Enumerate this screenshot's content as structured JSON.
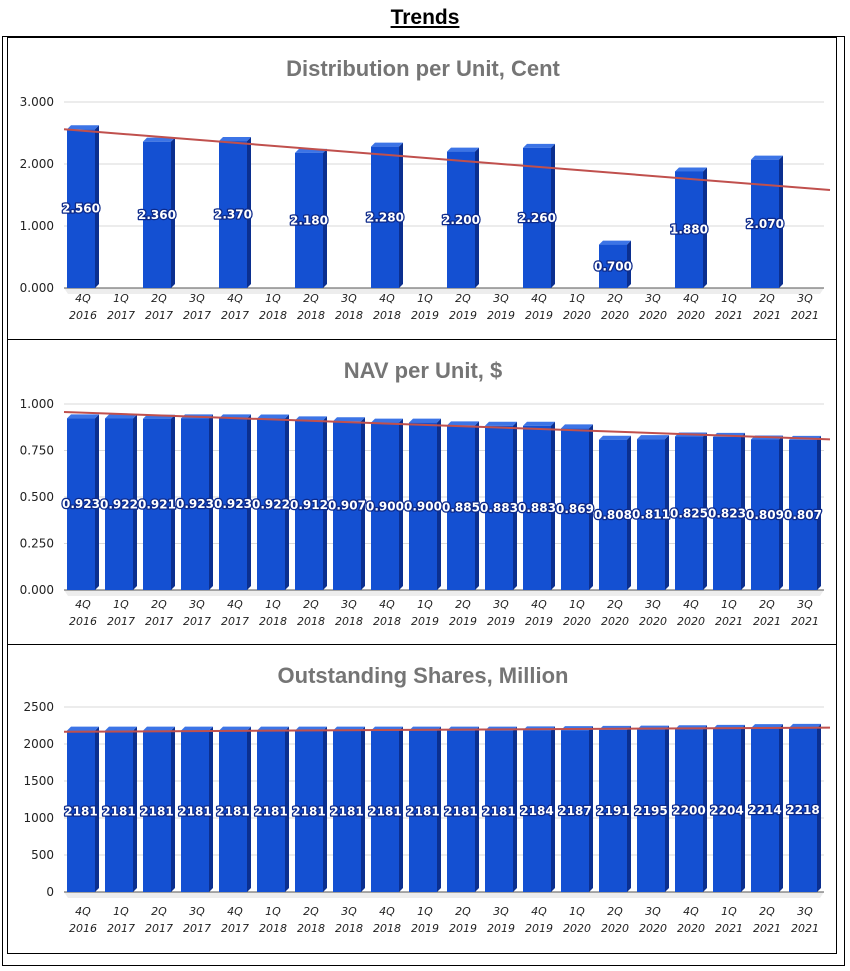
{
  "page": {
    "title": "Trends"
  },
  "colors": {
    "bar_front": "#1450D2",
    "bar_side": "#0B2F8F",
    "bar_top": "#3C74E6",
    "trend": "#C0504D",
    "grid": "#D9D9D9",
    "title": "#757575"
  },
  "charts": [
    {
      "id": "distribution",
      "title": "Distribution per Unit, Cent",
      "type": "bar",
      "ylim": [
        0,
        3
      ],
      "yticks": [
        "0.000",
        "1.000",
        "2.000",
        "3.000"
      ],
      "ytick_values": [
        0,
        1,
        2,
        3
      ],
      "categories": [
        [
          "4Q",
          "2016"
        ],
        [
          "1Q",
          "2017"
        ],
        [
          "2Q",
          "2017"
        ],
        [
          "3Q",
          "2017"
        ],
        [
          "4Q",
          "2017"
        ],
        [
          "1Q",
          "2018"
        ],
        [
          "2Q",
          "2018"
        ],
        [
          "3Q",
          "2018"
        ],
        [
          "4Q",
          "2018"
        ],
        [
          "1Q",
          "2019"
        ],
        [
          "2Q",
          "2019"
        ],
        [
          "3Q",
          "2019"
        ],
        [
          "4Q",
          "2019"
        ],
        [
          "1Q",
          "2020"
        ],
        [
          "2Q",
          "2020"
        ],
        [
          "3Q",
          "2020"
        ],
        [
          "4Q",
          "2020"
        ],
        [
          "1Q",
          "2021"
        ],
        [
          "2Q",
          "2021"
        ],
        [
          "3Q",
          "2021"
        ]
      ],
      "bar_categories": [
        0,
        2,
        4,
        6,
        8,
        10,
        12,
        14,
        16,
        18
      ],
      "values": [
        2.56,
        2.36,
        2.37,
        2.18,
        2.28,
        2.2,
        2.26,
        0.7,
        1.88,
        2.07
      ],
      "labels": [
        "2.560",
        "2.360",
        "2.370",
        "2.180",
        "2.280",
        "2.200",
        "2.260",
        "0.700",
        "1.880",
        "2.070"
      ],
      "trendline": [
        2.56,
        1.58
      ]
    },
    {
      "id": "nav",
      "title": "NAV per Unit, $",
      "type": "bar",
      "ylim": [
        0,
        1
      ],
      "yticks": [
        "0.000",
        "0.250",
        "0.500",
        "0.750",
        "1.000"
      ],
      "ytick_values": [
        0,
        0.25,
        0.5,
        0.75,
        1
      ],
      "categories": [
        [
          "4Q",
          "2016"
        ],
        [
          "1Q",
          "2017"
        ],
        [
          "2Q",
          "2017"
        ],
        [
          "3Q",
          "2017"
        ],
        [
          "4Q",
          "2017"
        ],
        [
          "1Q",
          "2018"
        ],
        [
          "2Q",
          "2018"
        ],
        [
          "3Q",
          "2018"
        ],
        [
          "4Q",
          "2018"
        ],
        [
          "1Q",
          "2019"
        ],
        [
          "2Q",
          "2019"
        ],
        [
          "3Q",
          "2019"
        ],
        [
          "4Q",
          "2019"
        ],
        [
          "1Q",
          "2020"
        ],
        [
          "2Q",
          "2020"
        ],
        [
          "3Q",
          "2020"
        ],
        [
          "4Q",
          "2020"
        ],
        [
          "1Q",
          "2021"
        ],
        [
          "2Q",
          "2021"
        ],
        [
          "3Q",
          "2021"
        ]
      ],
      "bar_categories": [
        0,
        1,
        2,
        3,
        4,
        5,
        6,
        7,
        8,
        9,
        10,
        11,
        12,
        13,
        14,
        15,
        16,
        17,
        18,
        19
      ],
      "values": [
        0.923,
        0.922,
        0.921,
        0.923,
        0.923,
        0.922,
        0.912,
        0.907,
        0.9,
        0.9,
        0.885,
        0.883,
        0.883,
        0.869,
        0.808,
        0.811,
        0.825,
        0.823,
        0.809,
        0.807
      ],
      "labels": [
        "0.923",
        "0.922",
        "0.921",
        "0.923",
        "0.923",
        "0.922",
        "0.912",
        "0.907",
        "0.900",
        "0.900",
        "0.885",
        "0.883",
        "0.883",
        "0.869",
        "0.808",
        "0.811",
        "0.825",
        "0.823",
        "0.809",
        "0.807"
      ],
      "trendline": [
        0.957,
        0.81
      ]
    },
    {
      "id": "shares",
      "title": "Outstanding Shares, Million",
      "type": "bar",
      "ylim": [
        0,
        2500
      ],
      "yticks": [
        "0",
        "500",
        "1000",
        "1500",
        "2000",
        "2500"
      ],
      "ytick_values": [
        0,
        500,
        1000,
        1500,
        2000,
        2500
      ],
      "categories": [
        [
          "4Q",
          "2016"
        ],
        [
          "1Q",
          "2017"
        ],
        [
          "2Q",
          "2017"
        ],
        [
          "3Q",
          "2017"
        ],
        [
          "4Q",
          "2017"
        ],
        [
          "1Q",
          "2018"
        ],
        [
          "2Q",
          "2018"
        ],
        [
          "3Q",
          "2018"
        ],
        [
          "4Q",
          "2018"
        ],
        [
          "1Q",
          "2019"
        ],
        [
          "2Q",
          "2019"
        ],
        [
          "3Q",
          "2019"
        ],
        [
          "4Q",
          "2019"
        ],
        [
          "1Q",
          "2020"
        ],
        [
          "2Q",
          "2020"
        ],
        [
          "3Q",
          "2020"
        ],
        [
          "4Q",
          "2020"
        ],
        [
          "1Q",
          "2021"
        ],
        [
          "2Q",
          "2021"
        ],
        [
          "3Q",
          "2021"
        ]
      ],
      "bar_categories": [
        0,
        1,
        2,
        3,
        4,
        5,
        6,
        7,
        8,
        9,
        10,
        11,
        12,
        13,
        14,
        15,
        16,
        17,
        18,
        19
      ],
      "values": [
        2181,
        2181,
        2181,
        2181,
        2181,
        2181,
        2181,
        2181,
        2181,
        2181,
        2181,
        2181,
        2184,
        2187,
        2191,
        2195,
        2200,
        2204,
        2214,
        2218
      ],
      "labels": [
        "2181",
        "2181",
        "2181",
        "2181",
        "2181",
        "2181",
        "2181",
        "2181",
        "2181",
        "2181",
        "2181",
        "2181",
        "2184",
        "2187",
        "2191",
        "2195",
        "2200",
        "2204",
        "2214",
        "2218"
      ],
      "trendline": [
        2165,
        2222
      ]
    }
  ]
}
